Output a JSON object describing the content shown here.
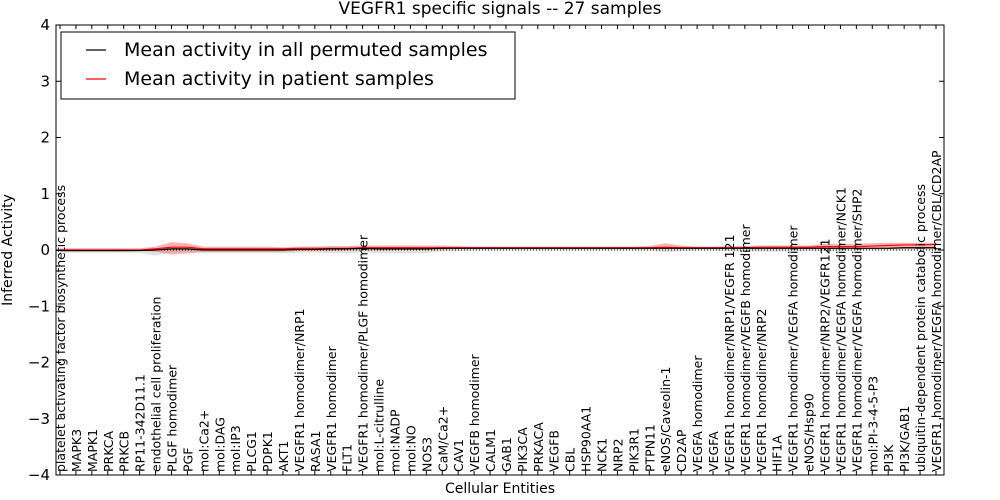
{
  "chart_data": {
    "type": "line",
    "title": "VEGFR1 specific signals -- 27 samples",
    "xlabel": "Cellular Entities",
    "ylabel": "Inferred Activity",
    "ylim": [
      -4,
      4
    ],
    "yticks": [
      -4,
      -3,
      -2,
      -1,
      0,
      1,
      2,
      3,
      4
    ],
    "grid": false,
    "legend_position": "top-left",
    "categories": [
      "platelet activating factor biosynthetic process",
      "MAPK3",
      "MAPK1",
      "PRKCA",
      "PRKCB",
      "RP11-342D11.1",
      "endothelial cell proliferation",
      "PLGF homodimer",
      "PGF",
      "mol:Ca2+",
      "mol:DAG",
      "mol:IP3",
      "PLCG1",
      "PDPK1",
      "AKT1",
      "VEGFR1 homodimer/NRP1",
      "RASA1",
      "VEGFR1 homodimer",
      "FLT1",
      "VEGFR1 homodimer/PLGF homodimer",
      "mol:L-citrulline",
      "mol:NADP",
      "mol:NO",
      "NOS3",
      "CaM/Ca2+",
      "CAV1",
      "VEGFB homodimer",
      "CALM1",
      "GAB1",
      "PIK3CA",
      "PRKACA",
      "VEGFB",
      "CBL",
      "HSP90AA1",
      "NCK1",
      "NRP2",
      "PIK3R1",
      "PTPN11",
      "eNOS/Caveolin-1",
      "CD2AP",
      "VEGFA homodimer",
      "VEGFA",
      "VEGFR1 homodimer/NRP1/VEGFR 121",
      "VEGFR1 homodimer/VEGFB homodimer",
      "VEGFR1 homodimer/NRP2",
      "HIF1A",
      "VEGFR1 homodimer/VEGFA homodimer",
      "eNOS/Hsp90",
      "VEGFR1 homodimer/NRP2/VEGFR121",
      "VEGFR1 homodimer/VEGFA homodimer/NCK1",
      "VEGFR1 homodimer/VEGFA homodimer/SHP2",
      "mol:PI-3-4-5-P3",
      "PI3K",
      "PI3K/GAB1",
      "ubiquitin-dependent protein catabolic process",
      "VEGFR1 homodimer/VEGFA homodimer/CBL/CD2AP"
    ],
    "series": [
      {
        "name": "Mean activity in all permuted samples",
        "color": "#000000",
        "values": [
          -0.01,
          -0.01,
          -0.01,
          -0.01,
          -0.01,
          -0.01,
          0.0,
          0.02,
          0.02,
          0.0,
          0.0,
          0.0,
          0.0,
          0.0,
          0.0,
          0.01,
          0.01,
          0.02,
          0.02,
          0.03,
          0.02,
          0.02,
          0.02,
          0.02,
          0.03,
          0.03,
          0.03,
          0.03,
          0.03,
          0.03,
          0.03,
          0.03,
          0.03,
          0.03,
          0.03,
          0.03,
          0.03,
          0.03,
          0.03,
          0.03,
          0.03,
          0.03,
          0.03,
          0.03,
          0.03,
          0.03,
          0.03,
          0.03,
          0.03,
          0.03,
          0.03,
          0.03,
          0.03,
          0.04,
          0.04,
          0.04
        ],
        "band_low": [
          -0.05,
          -0.05,
          -0.05,
          -0.05,
          -0.05,
          -0.05,
          -0.1,
          -0.04,
          -0.03,
          -0.05,
          -0.05,
          -0.05,
          -0.05,
          -0.05,
          -0.06,
          -0.05,
          -0.05,
          -0.05,
          -0.06,
          -0.05,
          -0.06,
          -0.06,
          -0.06,
          -0.06,
          -0.02,
          -0.02,
          -0.01,
          -0.01,
          -0.01,
          -0.01,
          -0.01,
          -0.01,
          -0.01,
          -0.01,
          -0.01,
          -0.01,
          -0.01,
          -0.01,
          -0.04,
          -0.02,
          -0.01,
          -0.01,
          -0.02,
          -0.03,
          -0.03,
          -0.03,
          -0.03,
          -0.02,
          -0.02,
          -0.02,
          -0.01,
          -0.01,
          -0.01,
          -0.01,
          -0.01,
          -0.01
        ],
        "band_high": [
          0.01,
          0.01,
          0.01,
          0.01,
          0.01,
          0.01,
          0.03,
          0.04,
          0.03,
          0.02,
          0.02,
          0.02,
          0.02,
          0.02,
          0.02,
          0.03,
          0.03,
          0.04,
          0.04,
          0.05,
          0.04,
          0.04,
          0.04,
          0.04,
          0.04,
          0.04,
          0.04,
          0.04,
          0.04,
          0.04,
          0.04,
          0.04,
          0.04,
          0.04,
          0.04,
          0.04,
          0.04,
          0.04,
          0.04,
          0.04,
          0.04,
          0.04,
          0.04,
          0.04,
          0.04,
          0.04,
          0.04,
          0.04,
          0.04,
          0.04,
          0.04,
          0.04,
          0.04,
          0.05,
          0.05,
          0.05
        ]
      },
      {
        "name": "Mean activity in patient samples",
        "color": "#ff0000",
        "values": [
          0.0,
          0.0,
          0.0,
          0.0,
          0.0,
          0.0,
          0.02,
          0.05,
          0.05,
          0.02,
          0.02,
          0.02,
          0.02,
          0.02,
          0.02,
          0.03,
          0.03,
          0.03,
          0.03,
          0.04,
          0.04,
          0.04,
          0.04,
          0.04,
          0.04,
          0.04,
          0.04,
          0.04,
          0.04,
          0.04,
          0.04,
          0.04,
          0.04,
          0.04,
          0.04,
          0.04,
          0.04,
          0.04,
          0.05,
          0.04,
          0.04,
          0.04,
          0.04,
          0.04,
          0.05,
          0.05,
          0.05,
          0.05,
          0.06,
          0.06,
          0.06,
          0.07,
          0.08,
          0.09,
          0.09,
          0.1
        ],
        "band_low": [
          -0.03,
          -0.03,
          -0.03,
          -0.03,
          -0.03,
          -0.02,
          -0.03,
          -0.08,
          -0.06,
          -0.04,
          -0.04,
          -0.04,
          -0.04,
          -0.04,
          -0.03,
          -0.02,
          -0.02,
          -0.02,
          -0.01,
          -0.01,
          -0.01,
          0.0,
          0.0,
          0.0,
          0.01,
          0.02,
          0.02,
          0.02,
          0.02,
          0.02,
          0.02,
          0.02,
          0.02,
          0.02,
          0.02,
          0.02,
          0.02,
          0.02,
          0.02,
          0.02,
          0.02,
          0.02,
          0.02,
          0.02,
          0.02,
          0.02,
          0.02,
          0.02,
          0.02,
          0.02,
          0.02,
          0.02,
          0.02,
          0.02,
          0.02,
          0.02
        ],
        "band_high": [
          0.03,
          0.03,
          0.03,
          0.03,
          0.03,
          0.03,
          0.06,
          0.14,
          0.12,
          0.06,
          0.06,
          0.06,
          0.06,
          0.06,
          0.05,
          0.06,
          0.06,
          0.07,
          0.07,
          0.08,
          0.08,
          0.08,
          0.08,
          0.08,
          0.08,
          0.07,
          0.06,
          0.06,
          0.06,
          0.06,
          0.06,
          0.06,
          0.06,
          0.06,
          0.06,
          0.06,
          0.06,
          0.07,
          0.12,
          0.08,
          0.06,
          0.06,
          0.07,
          0.07,
          0.08,
          0.08,
          0.08,
          0.08,
          0.11,
          0.11,
          0.11,
          0.12,
          0.13,
          0.13,
          0.13,
          0.13
        ]
      }
    ],
    "zero_line": "dotted"
  }
}
